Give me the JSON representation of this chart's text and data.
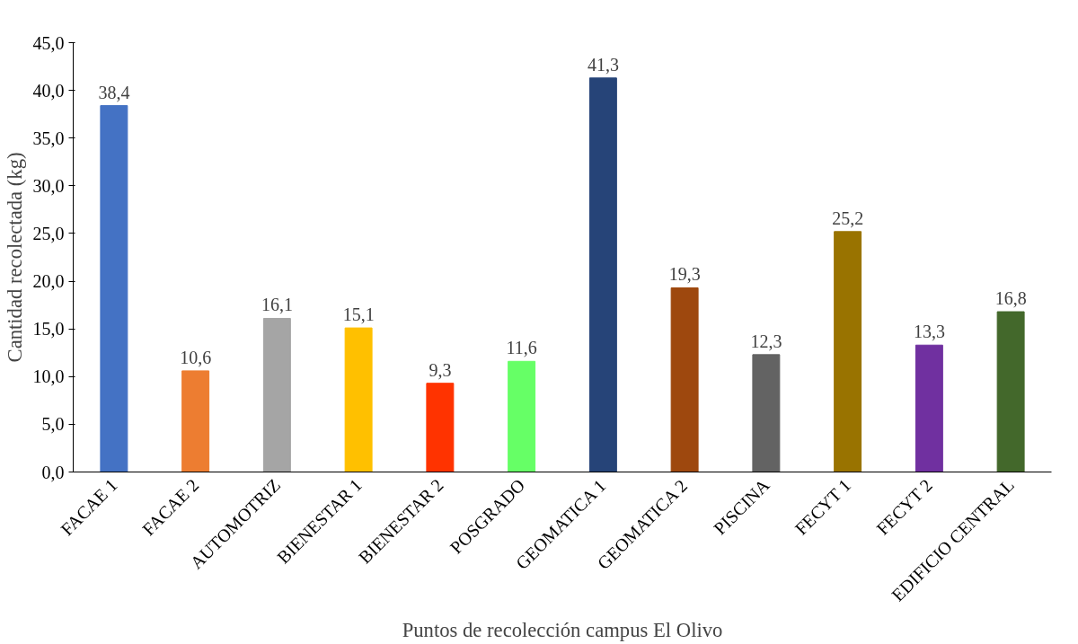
{
  "chart_data": {
    "type": "bar",
    "xlabel": "Puntos de recolección campus El Olivo",
    "ylabel": "Cantidad recolectada (kg)",
    "categories": [
      "FACAE 1",
      "FACAE 2",
      "AUTOMOTRIZ",
      "BIENESTAR 1",
      "BIENESTAR 2",
      "POSGRADO",
      "GEOMATICA 1",
      "GEOMATICA 2",
      "PISCINA",
      "FECYT 1",
      "FECYT 2",
      "EDIFICIO CENTRAL"
    ],
    "values": [
      38.4,
      10.6,
      16.1,
      15.1,
      9.3,
      11.6,
      41.3,
      19.3,
      12.3,
      25.2,
      13.3,
      16.8
    ],
    "value_labels": [
      "38,4",
      "10,6",
      "16,1",
      "15,1",
      "9,3",
      "11,6",
      "41,3",
      "19,3",
      "12,3",
      "25,2",
      "13,3",
      "16,8"
    ],
    "colors": [
      "#4472c4",
      "#ed7d31",
      "#a5a5a5",
      "#ffc000",
      "#ff3300",
      "#66ff66",
      "#264478",
      "#9e480e",
      "#636363",
      "#997300",
      "#7030a0",
      "#43682b"
    ],
    "ylim": [
      0,
      45
    ],
    "yticks": [
      {
        "value": 0,
        "label": "0,0"
      },
      {
        "value": 5,
        "label": "5,0"
      },
      {
        "value": 10,
        "label": "10,0"
      },
      {
        "value": 15,
        "label": "15,0"
      },
      {
        "value": 20,
        "label": "20,0"
      },
      {
        "value": 25,
        "label": "25,0"
      },
      {
        "value": 30,
        "label": "30,0"
      },
      {
        "value": 35,
        "label": "35,0"
      },
      {
        "value": 40,
        "label": "40,0"
      },
      {
        "value": 45,
        "label": "45,0"
      }
    ],
    "grid": false
  }
}
